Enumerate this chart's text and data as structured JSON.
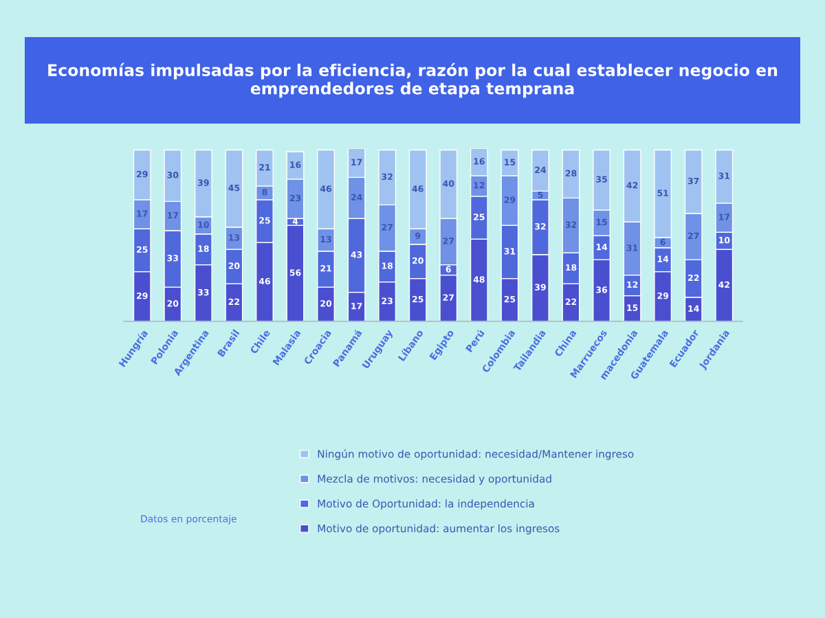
{
  "chart_data": {
    "type": "bar",
    "stacked": true,
    "data_labels": true,
    "legend": "bottom right",
    "grid": false,
    "title": "Economías impulsadas por la eficiencia, razón por la cual establecer negocio en emprendedores de etapa temprana",
    "annotations": [
      "Datos en porcentaje"
    ],
    "categories": [
      "Hungría",
      "Polonia",
      "Argentina",
      "Brasil",
      "Chile",
      "Malasia",
      "Croacia",
      "Panamá",
      "Uruguay",
      "Líbano",
      "Egipto",
      "Perú",
      "Colombia",
      "Tailandia",
      "China",
      "Marruecos",
      "macedonia",
      "Guatemala",
      "Ecuador",
      "Jordania"
    ],
    "series": [
      {
        "name": "Motivo de oportunidad: aumentar los ingresos",
        "color": "#4a4fcf",
        "values": [
          29,
          20,
          33,
          22,
          46,
          56,
          20,
          17,
          23,
          25,
          27,
          48,
          25,
          39,
          22,
          36,
          15,
          29,
          14,
          42
        ]
      },
      {
        "name": "Motivo de Oportunidad: la independencia",
        "color": "#4f68dc",
        "values": [
          25,
          33,
          18,
          20,
          25,
          4,
          21,
          43,
          18,
          20,
          6,
          25,
          31,
          32,
          18,
          14,
          12,
          14,
          22,
          10
        ]
      },
      {
        "name": "Mezcla de motivos: necesidad y oportunidad",
        "color": "#6f92e6",
        "values": [
          17,
          17,
          10,
          13,
          8,
          23,
          13,
          24,
          27,
          9,
          27,
          12,
          29,
          5,
          32,
          15,
          31,
          6,
          27,
          17
        ]
      },
      {
        "name": "Ningún motivo de oportunidad: necesidad/Mantener ingreso",
        "color": "#9fc2f0",
        "values": [
          29,
          30,
          39,
          45,
          21,
          16,
          46,
          17,
          32,
          46,
          40,
          16,
          15,
          24,
          28,
          35,
          42,
          51,
          37,
          31
        ]
      }
    ]
  }
}
